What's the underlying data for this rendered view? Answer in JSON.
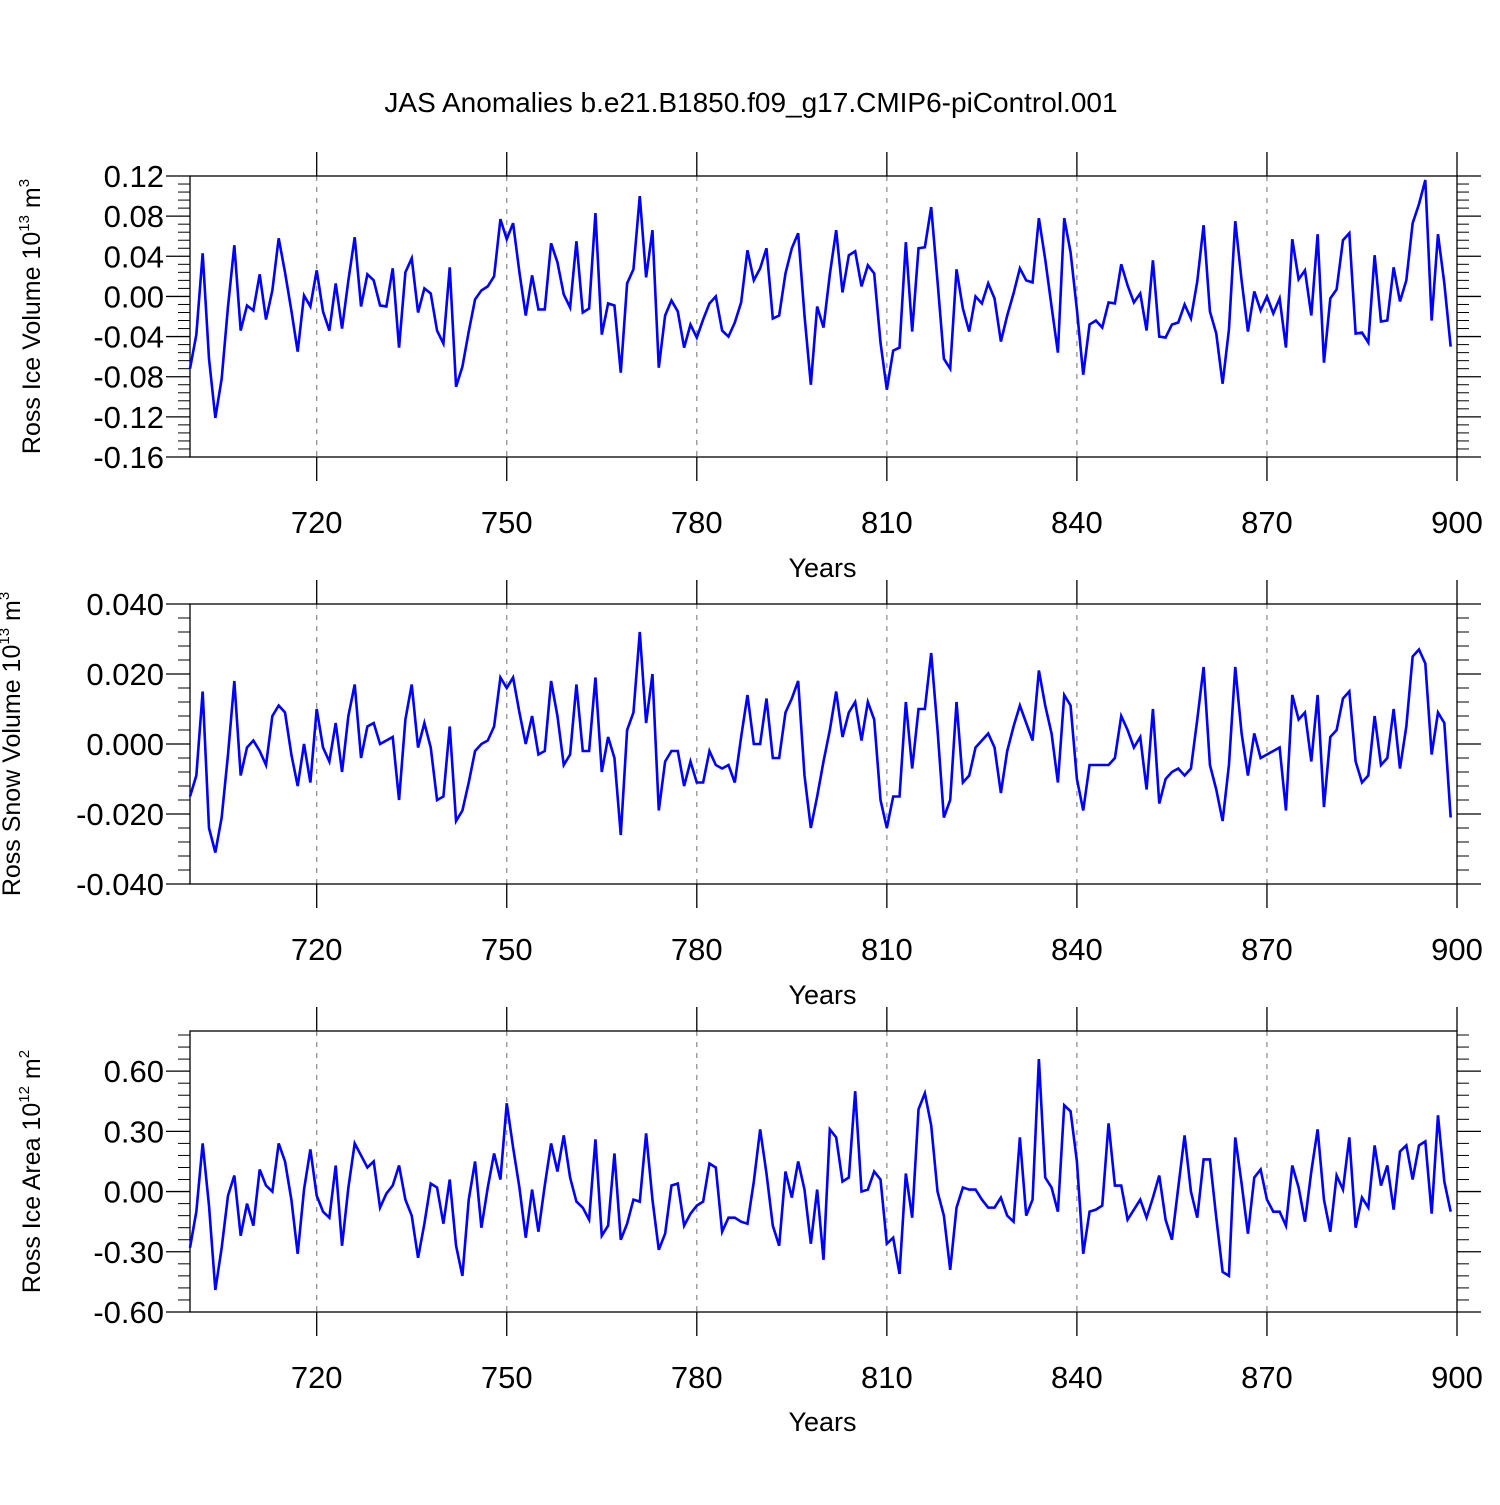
{
  "title": "JAS Anomalies b.e21.B1850.f09_g17.CMIP6-piControl.001",
  "colors": {
    "series": "#0000ff",
    "axis": "#000000",
    "grid": "#888888",
    "background": "#ffffff"
  },
  "chart_data": [
    {
      "type": "line",
      "ylabel": {
        "text": "Ross Ice Volume 10",
        "exp": "13",
        "unit": " m",
        "unit_exp": "3"
      },
      "xlabel": "Years",
      "xlim": [
        700,
        900
      ],
      "xticks": [
        720,
        750,
        780,
        810,
        840,
        870,
        900
      ],
      "ylim": [
        -0.16,
        0.12
      ],
      "yticks": [
        -0.16,
        -0.12,
        -0.08,
        -0.04,
        0.0,
        0.04,
        0.08,
        0.12
      ],
      "yticklabels": [
        "-0.16",
        "-0.12",
        "-0.08",
        "-0.04",
        "0.00",
        "0.04",
        "0.08",
        "0.12"
      ],
      "x_start": 700,
      "values": [
        -0.072,
        -0.038,
        0.043,
        -0.062,
        -0.121,
        -0.082,
        -0.01,
        0.051,
        -0.034,
        -0.009,
        -0.014,
        0.022,
        -0.023,
        0.006,
        0.058,
        0.024,
        -0.014,
        -0.055,
        0.001,
        -0.01,
        0.026,
        -0.015,
        -0.034,
        0.013,
        -0.032,
        0.016,
        0.059,
        -0.01,
        0.022,
        0.016,
        -0.009,
        -0.01,
        0.028,
        -0.051,
        0.024,
        0.038,
        -0.016,
        0.008,
        0.003,
        -0.034,
        -0.047,
        0.029,
        -0.09,
        -0.07,
        -0.035,
        -0.003,
        0.006,
        0.01,
        0.02,
        0.077,
        0.057,
        0.073,
        0.024,
        -0.019,
        0.021,
        -0.013,
        -0.013,
        0.053,
        0.034,
        0.002,
        -0.011,
        0.055,
        -0.016,
        -0.012,
        0.083,
        -0.038,
        -0.007,
        -0.009,
        -0.076,
        0.013,
        0.027,
        0.1,
        0.019,
        0.066,
        -0.071,
        -0.019,
        -0.004,
        -0.015,
        -0.051,
        -0.028,
        -0.041,
        -0.023,
        -0.007,
        0.0,
        -0.034,
        -0.04,
        -0.026,
        -0.006,
        0.046,
        0.016,
        0.028,
        0.048,
        -0.022,
        -0.019,
        0.023,
        0.048,
        0.063,
        -0.019,
        -0.088,
        -0.01,
        -0.031,
        0.022,
        0.066,
        0.004,
        0.041,
        0.045,
        0.01,
        0.031,
        0.023,
        -0.046,
        -0.093,
        -0.054,
        -0.051,
        0.054,
        -0.035,
        0.048,
        0.049,
        0.089,
        0.015,
        -0.062,
        -0.072,
        0.027,
        -0.012,
        -0.035,
        0.0,
        -0.007,
        0.013,
        -0.002,
        -0.045,
        -0.019,
        0.003,
        0.028,
        0.016,
        0.014,
        0.078,
        0.037,
        -0.01,
        -0.056,
        0.078,
        0.044,
        -0.013,
        -0.078,
        -0.028,
        -0.024,
        -0.031,
        -0.006,
        -0.007,
        0.032,
        0.011,
        -0.006,
        0.003,
        -0.034,
        0.036,
        -0.04,
        -0.041,
        -0.028,
        -0.026,
        -0.008,
        -0.022,
        0.015,
        0.071,
        -0.015,
        -0.037,
        -0.087,
        -0.033,
        0.075,
        0.016,
        -0.035,
        0.005,
        -0.014,
        0.0,
        -0.017,
        -0.002,
        -0.051,
        0.057,
        0.017,
        0.026,
        -0.019,
        0.062,
        -0.066,
        -0.002,
        0.007,
        0.056,
        0.063,
        -0.037,
        -0.036,
        -0.046,
        0.041,
        -0.025,
        -0.024,
        0.029,
        -0.005,
        0.016,
        0.073,
        0.092,
        0.116,
        -0.024,
        0.062,
        0.013,
        -0.05
      ]
    },
    {
      "type": "line",
      "ylabel": {
        "text": "Ross Snow Volume 10",
        "exp": "13",
        "unit": " m",
        "unit_exp": "3"
      },
      "xlabel": "Years",
      "xlim": [
        700,
        900
      ],
      "xticks": [
        720,
        750,
        780,
        810,
        840,
        870,
        900
      ],
      "ylim": [
        -0.04,
        0.04
      ],
      "yticks": [
        -0.04,
        -0.02,
        0.0,
        0.02,
        0.04
      ],
      "yticklabels": [
        "-0.040",
        "-0.020",
        "0.000",
        "0.020",
        "0.040"
      ],
      "x_start": 700,
      "values": [
        -0.015,
        -0.009,
        0.015,
        -0.024,
        -0.031,
        -0.021,
        -0.003,
        0.018,
        -0.009,
        -0.001,
        0.001,
        -0.002,
        -0.006,
        0.008,
        0.011,
        0.009,
        -0.003,
        -0.012,
        0.0,
        -0.011,
        0.01,
        -0.001,
        -0.005,
        0.006,
        -0.008,
        0.008,
        0.017,
        -0.004,
        0.005,
        0.006,
        0.0,
        0.001,
        0.002,
        -0.016,
        0.007,
        0.017,
        -0.001,
        0.006,
        -0.001,
        -0.016,
        -0.015,
        0.005,
        -0.022,
        -0.019,
        -0.011,
        -0.002,
        0.0,
        0.001,
        0.005,
        0.019,
        0.016,
        0.019,
        0.009,
        0.0,
        0.008,
        -0.003,
        -0.002,
        0.018,
        0.008,
        -0.006,
        -0.003,
        0.017,
        -0.002,
        -0.002,
        0.019,
        -0.008,
        0.002,
        -0.004,
        -0.026,
        0.004,
        0.009,
        0.032,
        0.006,
        0.02,
        -0.019,
        -0.005,
        -0.002,
        -0.002,
        -0.012,
        -0.005,
        -0.011,
        -0.011,
        -0.002,
        -0.006,
        -0.007,
        -0.006,
        -0.011,
        0.002,
        0.014,
        0.0,
        0.0,
        0.013,
        -0.004,
        -0.004,
        0.009,
        0.013,
        0.018,
        -0.009,
        -0.024,
        -0.015,
        -0.005,
        0.004,
        0.015,
        0.002,
        0.009,
        0.012,
        0.001,
        0.012,
        0.007,
        -0.016,
        -0.024,
        -0.015,
        -0.015,
        0.012,
        -0.007,
        0.01,
        0.01,
        0.026,
        0.004,
        -0.021,
        -0.016,
        0.012,
        -0.011,
        -0.009,
        -0.001,
        0.001,
        0.003,
        -0.001,
        -0.014,
        -0.002,
        0.005,
        0.011,
        0.006,
        0.001,
        0.021,
        0.011,
        0.003,
        -0.011,
        0.014,
        0.011,
        -0.01,
        -0.019,
        -0.006,
        -0.006,
        -0.006,
        -0.006,
        -0.004,
        0.008,
        0.004,
        -0.001,
        0.002,
        -0.013,
        0.01,
        -0.017,
        -0.01,
        -0.008,
        -0.007,
        -0.009,
        -0.007,
        0.007,
        0.022,
        -0.006,
        -0.013,
        -0.022,
        -0.006,
        0.022,
        0.003,
        -0.009,
        0.003,
        -0.004,
        -0.003,
        -0.002,
        -0.001,
        -0.019,
        0.014,
        0.007,
        0.009,
        -0.005,
        0.014,
        -0.018,
        0.002,
        0.004,
        0.013,
        0.015,
        -0.005,
        -0.011,
        -0.009,
        0.008,
        -0.006,
        -0.004,
        0.01,
        -0.007,
        0.005,
        0.025,
        0.027,
        0.023,
        -0.003,
        0.009,
        0.006,
        -0.021
      ]
    },
    {
      "type": "line",
      "ylabel": {
        "text": "Ross Ice Area 10",
        "exp": "12",
        "unit": " m",
        "unit_exp": "2"
      },
      "xlabel": "Years",
      "xlim": [
        700,
        900
      ],
      "xticks": [
        720,
        750,
        780,
        810,
        840,
        870,
        900
      ],
      "ylim": [
        -0.6,
        0.8
      ],
      "yticks": [
        -0.6,
        -0.3,
        0.0,
        0.3,
        0.6
      ],
      "yticklabels": [
        "-0.60",
        "-0.30",
        "0.00",
        "0.30",
        "0.60"
      ],
      "x_start": 700,
      "values": [
        -0.28,
        -0.1,
        0.24,
        -0.07,
        -0.49,
        -0.28,
        -0.02,
        0.08,
        -0.22,
        -0.06,
        -0.17,
        0.11,
        0.03,
        0.0,
        0.24,
        0.15,
        -0.04,
        -0.31,
        0.01,
        0.21,
        -0.02,
        -0.1,
        -0.13,
        0.13,
        -0.27,
        0.02,
        0.24,
        0.18,
        0.12,
        0.15,
        -0.08,
        -0.01,
        0.03,
        0.13,
        -0.04,
        -0.12,
        -0.33,
        -0.16,
        0.04,
        0.02,
        -0.16,
        0.06,
        -0.27,
        -0.42,
        -0.04,
        0.15,
        -0.18,
        0.02,
        0.19,
        0.06,
        0.44,
        0.22,
        0.02,
        -0.23,
        0.01,
        -0.2,
        0.03,
        0.24,
        0.1,
        0.28,
        0.07,
        -0.05,
        -0.08,
        -0.14,
        0.26,
        -0.22,
        -0.17,
        0.19,
        -0.24,
        -0.16,
        -0.04,
        -0.05,
        0.29,
        -0.04,
        -0.29,
        -0.21,
        0.03,
        0.04,
        -0.17,
        -0.11,
        -0.07,
        -0.05,
        0.14,
        0.12,
        -0.2,
        -0.13,
        -0.13,
        -0.15,
        -0.16,
        0.05,
        0.31,
        0.09,
        -0.17,
        -0.27,
        0.1,
        -0.03,
        0.15,
        0.01,
        -0.26,
        0.01,
        -0.34,
        0.31,
        0.27,
        0.05,
        0.07,
        0.5,
        0.0,
        0.01,
        0.1,
        0.06,
        -0.26,
        -0.23,
        -0.41,
        0.09,
        -0.13,
        0.41,
        0.49,
        0.33,
        0.0,
        -0.12,
        -0.39,
        -0.08,
        0.02,
        0.01,
        0.01,
        -0.04,
        -0.08,
        -0.08,
        -0.03,
        -0.12,
        -0.15,
        0.27,
        -0.12,
        -0.04,
        0.66,
        0.07,
        0.02,
        -0.1,
        0.43,
        0.4,
        0.15,
        -0.31,
        -0.1,
        -0.09,
        -0.07,
        0.34,
        0.03,
        0.03,
        -0.14,
        -0.09,
        -0.04,
        -0.13,
        -0.03,
        0.08,
        -0.14,
        -0.24,
        0.02,
        0.28,
        0.0,
        -0.13,
        0.16,
        0.16,
        -0.13,
        -0.4,
        -0.42,
        0.27,
        0.04,
        -0.21,
        0.07,
        0.11,
        -0.04,
        -0.1,
        -0.1,
        -0.17,
        0.13,
        0.02,
        -0.15,
        0.1,
        0.31,
        -0.04,
        -0.2,
        0.08,
        0.01,
        0.27,
        -0.18,
        -0.03,
        -0.08,
        0.23,
        0.03,
        0.13,
        -0.09,
        0.2,
        0.23,
        0.06,
        0.23,
        0.25,
        -0.11,
        0.38,
        0.05,
        -0.1
      ]
    }
  ]
}
